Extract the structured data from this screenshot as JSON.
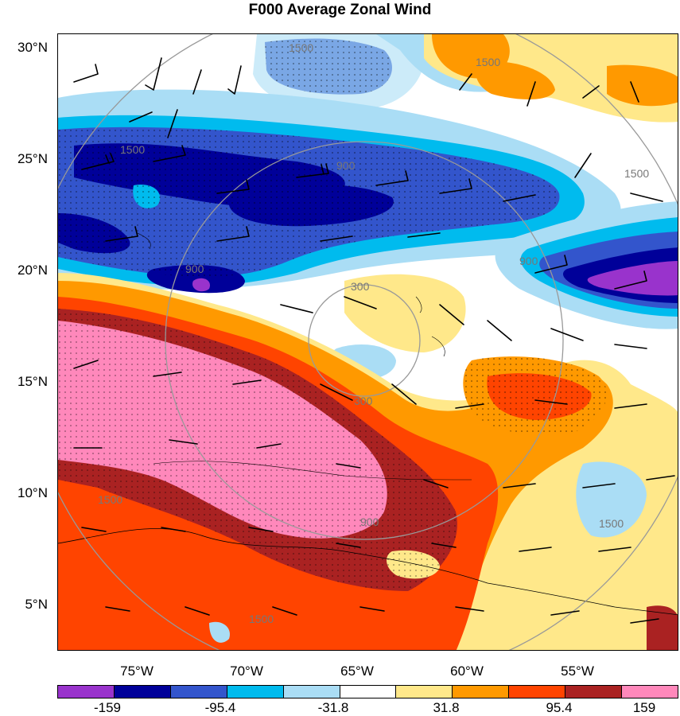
{
  "title": "F000 Average Zonal Wind",
  "lat_labels": [
    "30°N",
    "25°N",
    "20°N",
    "15°N",
    "10°N",
    "5°N"
  ],
  "lon_labels": [
    "75°W",
    "70°W",
    "65°W",
    "60°W",
    "55°W"
  ],
  "colorbar": {
    "colors": [
      "#9933cc",
      "#000099",
      "#3355cc",
      "#00bbee",
      "#aaddf5",
      "#ffffff",
      "#ffe88a",
      "#ff9900",
      "#ff4400",
      "#aa2222",
      "#ff88bb"
    ],
    "labels": [
      "-159",
      "-95.4",
      "-31.8",
      "31.8",
      "95.4",
      "159"
    ]
  },
  "range_rings": [
    "300",
    "300",
    "900",
    "900",
    "900",
    "900",
    "1500",
    "1500",
    "1500",
    "1500",
    "1500",
    "1500",
    "1500"
  ]
}
